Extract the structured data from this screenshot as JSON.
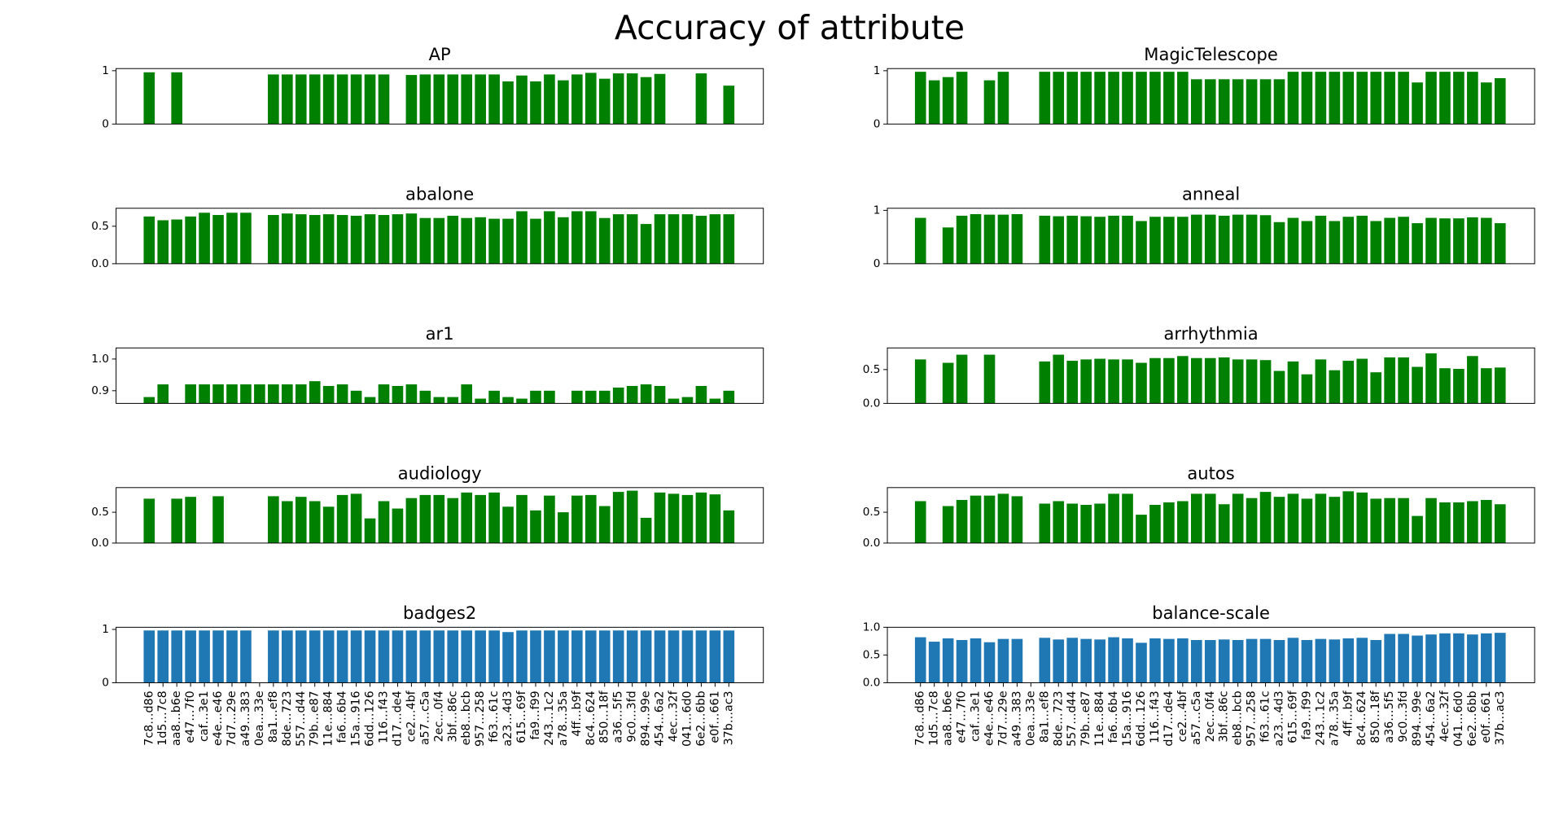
{
  "title": "Accuracy of attribute",
  "chart_data": [
    {
      "type": "bar",
      "title": "AP",
      "color": "#008000",
      "ylim": [
        0,
        1.04
      ],
      "yticks": [
        0,
        1
      ],
      "values": [
        0.97,
        null,
        0.97,
        null,
        null,
        null,
        null,
        null,
        null,
        0.93,
        0.93,
        0.93,
        0.93,
        0.93,
        0.93,
        0.93,
        0.93,
        0.93,
        null,
        0.92,
        0.93,
        0.93,
        0.93,
        0.93,
        0.93,
        0.93,
        0.8,
        0.91,
        0.8,
        0.93,
        0.82,
        0.93,
        0.96,
        0.85,
        0.95,
        0.95,
        0.88,
        0.94,
        null,
        null,
        0.95,
        null,
        0.72
      ]
    },
    {
      "type": "bar",
      "title": "MagicTelescope",
      "color": "#008000",
      "ylim": [
        0,
        1.04
      ],
      "yticks": [
        0,
        1
      ],
      "values": [
        0.98,
        0.82,
        0.88,
        0.98,
        null,
        0.82,
        0.98,
        null,
        null,
        0.98,
        0.98,
        0.98,
        0.98,
        0.98,
        0.98,
        0.98,
        0.98,
        0.98,
        0.98,
        0.98,
        0.84,
        0.84,
        0.84,
        0.84,
        0.84,
        0.84,
        0.84,
        0.98,
        0.98,
        0.98,
        0.98,
        0.98,
        0.98,
        0.98,
        0.98,
        0.98,
        0.78,
        0.98,
        0.98,
        0.98,
        0.98,
        0.78,
        0.86
      ]
    },
    {
      "type": "bar",
      "title": "abalone",
      "color": "#008000",
      "ylim": [
        0,
        0.74
      ],
      "yticks": [
        {
          "value": 0,
          "label": "0.0"
        },
        0.5
      ],
      "values": [
        0.63,
        0.58,
        0.59,
        0.63,
        0.68,
        0.65,
        0.68,
        0.68,
        null,
        0.65,
        0.67,
        0.66,
        0.65,
        0.66,
        0.65,
        0.64,
        0.66,
        0.65,
        0.66,
        0.67,
        0.61,
        0.61,
        0.64,
        0.61,
        0.62,
        0.6,
        0.6,
        0.7,
        0.6,
        0.7,
        0.62,
        0.7,
        0.7,
        0.61,
        0.66,
        0.66,
        0.53,
        0.66,
        0.66,
        0.66,
        0.64,
        0.66,
        0.66
      ]
    },
    {
      "type": "bar",
      "title": "anneal",
      "color": "#008000",
      "ylim": [
        0,
        1.04
      ],
      "yticks": [
        0,
        1
      ],
      "values": [
        0.86,
        null,
        0.68,
        0.9,
        0.93,
        0.92,
        0.92,
        0.93,
        null,
        0.9,
        0.89,
        0.9,
        0.89,
        0.88,
        0.9,
        0.9,
        0.8,
        0.88,
        0.88,
        0.88,
        0.92,
        0.92,
        0.9,
        0.92,
        0.92,
        0.91,
        0.78,
        0.86,
        0.8,
        0.9,
        0.8,
        0.88,
        0.9,
        0.8,
        0.86,
        0.88,
        0.76,
        0.86,
        0.85,
        0.85,
        0.87,
        0.86,
        0.76
      ]
    },
    {
      "type": "bar",
      "title": "ar1",
      "color": "#008000",
      "ylim": [
        0.86,
        1.035
      ],
      "yticks": [
        0.9,
        {
          "value": 1,
          "label": "1.0"
        }
      ],
      "values": [
        0.88,
        0.92,
        null,
        0.92,
        0.92,
        0.92,
        0.92,
        0.92,
        0.92,
        0.92,
        0.92,
        0.92,
        0.93,
        0.915,
        0.92,
        0.9,
        0.88,
        0.92,
        0.915,
        0.92,
        0.9,
        0.88,
        0.88,
        0.92,
        0.875,
        0.9,
        0.88,
        0.875,
        0.9,
        0.9,
        null,
        0.9,
        0.9,
        0.9,
        0.91,
        0.915,
        0.92,
        0.915,
        0.875,
        0.88,
        0.915,
        0.875,
        0.9
      ]
    },
    {
      "type": "bar",
      "title": "arrhythmia",
      "color": "#008000",
      "ylim": [
        0,
        0.82
      ],
      "yticks": [
        {
          "value": 0,
          "label": "0.0"
        },
        0.5
      ],
      "values": [
        0.65,
        null,
        0.6,
        0.72,
        null,
        0.72,
        null,
        null,
        null,
        0.62,
        0.72,
        0.63,
        0.65,
        0.66,
        0.65,
        0.65,
        0.6,
        0.67,
        0.67,
        0.7,
        0.67,
        0.67,
        0.68,
        0.65,
        0.65,
        0.64,
        0.48,
        0.62,
        0.43,
        0.65,
        0.49,
        0.63,
        0.66,
        0.46,
        0.68,
        0.68,
        0.54,
        0.74,
        0.52,
        0.51,
        0.7,
        0.52,
        0.53
      ]
    },
    {
      "type": "bar",
      "title": "audiology",
      "color": "#008000",
      "ylim": [
        0,
        0.9
      ],
      "yticks": [
        {
          "value": 0,
          "label": "0.0"
        },
        0.5
      ],
      "values": [
        0.72,
        null,
        0.72,
        0.75,
        null,
        0.76,
        null,
        null,
        null,
        0.76,
        0.68,
        0.75,
        0.68,
        0.59,
        0.78,
        0.8,
        0.4,
        0.68,
        0.56,
        0.73,
        0.78,
        0.78,
        0.73,
        0.82,
        0.78,
        0.82,
        0.59,
        0.78,
        0.53,
        0.77,
        0.5,
        0.77,
        0.78,
        0.6,
        0.83,
        0.85,
        0.41,
        0.82,
        0.8,
        0.78,
        0.82,
        0.79,
        0.53
      ]
    },
    {
      "type": "bar",
      "title": "autos",
      "color": "#008000",
      "ylim": [
        0,
        0.9
      ],
      "yticks": [
        {
          "value": 0,
          "label": "0.0"
        },
        0.5
      ],
      "values": [
        0.68,
        null,
        0.6,
        0.7,
        0.77,
        0.77,
        0.8,
        0.76,
        null,
        0.64,
        0.68,
        0.64,
        0.62,
        0.64,
        0.8,
        0.8,
        0.46,
        0.62,
        0.66,
        0.68,
        0.8,
        0.8,
        0.63,
        0.8,
        0.73,
        0.83,
        0.75,
        0.8,
        0.72,
        0.8,
        0.75,
        0.84,
        0.82,
        0.72,
        0.73,
        0.73,
        0.44,
        0.73,
        0.66,
        0.66,
        0.68,
        0.7,
        0.63
      ]
    },
    {
      "type": "bar",
      "title": "badges2",
      "color": "#1f77b4",
      "ylim": [
        0,
        1.04
      ],
      "yticks": [
        0,
        1
      ],
      "categories": [
        "7c8…d86",
        "1d5…7c8",
        "aa8…b6e",
        "e47…7f0",
        "caf…3e1",
        "e4e…e46",
        "7d7…29e",
        "a49…383",
        "0ea…33e",
        "8a1…ef8",
        "8de…723",
        "557…d44",
        "79b…e87",
        "11e…884",
        "fa6…6b4",
        "15a…916",
        "6dd…126",
        "116…f43",
        "d17…de4",
        "ce2…4bf",
        "a57…c5a",
        "2ec…0f4",
        "3bf…86c",
        "eb8…bcb",
        "957…258",
        "f63…61c",
        "a23…4d3",
        "615…69f",
        "fa9…f99",
        "243…1c2",
        "a78…35a",
        "4ff…b9f",
        "8c4…624",
        "850…18f",
        "a36…5f5",
        "9c0…3fd",
        "894…99e",
        "454…6a2",
        "4ec…32f",
        "041…6d0",
        "6e2…6bb",
        "e0f…661",
        "37b…ac3"
      ],
      "values": [
        0.98,
        0.98,
        0.98,
        0.98,
        0.98,
        0.98,
        0.98,
        0.98,
        null,
        0.98,
        0.98,
        0.98,
        0.98,
        0.98,
        0.98,
        0.98,
        0.98,
        0.98,
        0.98,
        0.98,
        0.98,
        0.98,
        0.98,
        0.98,
        0.98,
        0.98,
        0.95,
        0.98,
        0.98,
        0.98,
        0.98,
        0.98,
        0.98,
        0.98,
        0.98,
        0.98,
        0.98,
        0.98,
        0.98,
        0.98,
        0.98,
        0.98,
        0.98
      ]
    },
    {
      "type": "bar",
      "title": "balance-scale",
      "color": "#1f77b4",
      "ylim": [
        0,
        1
      ],
      "yticks": [
        {
          "value": 0,
          "label": "0.0"
        },
        0.5,
        {
          "value": 1,
          "label": "1.0"
        }
      ],
      "categories": [
        "7c8…d86",
        "1d5…7c8",
        "aa8…b6e",
        "e47…7f0",
        "caf…3e1",
        "e4e…e46",
        "7d7…29e",
        "a49…383",
        "0ea…33e",
        "8a1…ef8",
        "8de…723",
        "557…d44",
        "79b…e87",
        "11e…884",
        "fa6…6b4",
        "15a…916",
        "6dd…126",
        "116…f43",
        "d17…de4",
        "ce2…4bf",
        "a57…c5a",
        "2ec…0f4",
        "3bf…86c",
        "eb8…bcb",
        "957…258",
        "f63…61c",
        "a23…4d3",
        "615…69f",
        "fa9…f99",
        "243…1c2",
        "a78…35a",
        "4ff…b9f",
        "8c4…624",
        "850…18f",
        "a36…5f5",
        "9c0…3fd",
        "894…99e",
        "454…6a2",
        "4ec…32f",
        "041…6d0",
        "6e2…6bb",
        "e0f…661",
        "37b…ac3"
      ],
      "values": [
        0.82,
        0.74,
        0.8,
        0.77,
        0.8,
        0.73,
        0.79,
        0.79,
        null,
        0.81,
        0.78,
        0.81,
        0.79,
        0.78,
        0.82,
        0.8,
        0.72,
        0.8,
        0.79,
        0.8,
        0.77,
        0.77,
        0.78,
        0.77,
        0.79,
        0.79,
        0.77,
        0.81,
        0.77,
        0.79,
        0.78,
        0.8,
        0.81,
        0.77,
        0.88,
        0.88,
        0.85,
        0.87,
        0.89,
        0.89,
        0.87,
        0.89,
        0.9
      ]
    }
  ]
}
